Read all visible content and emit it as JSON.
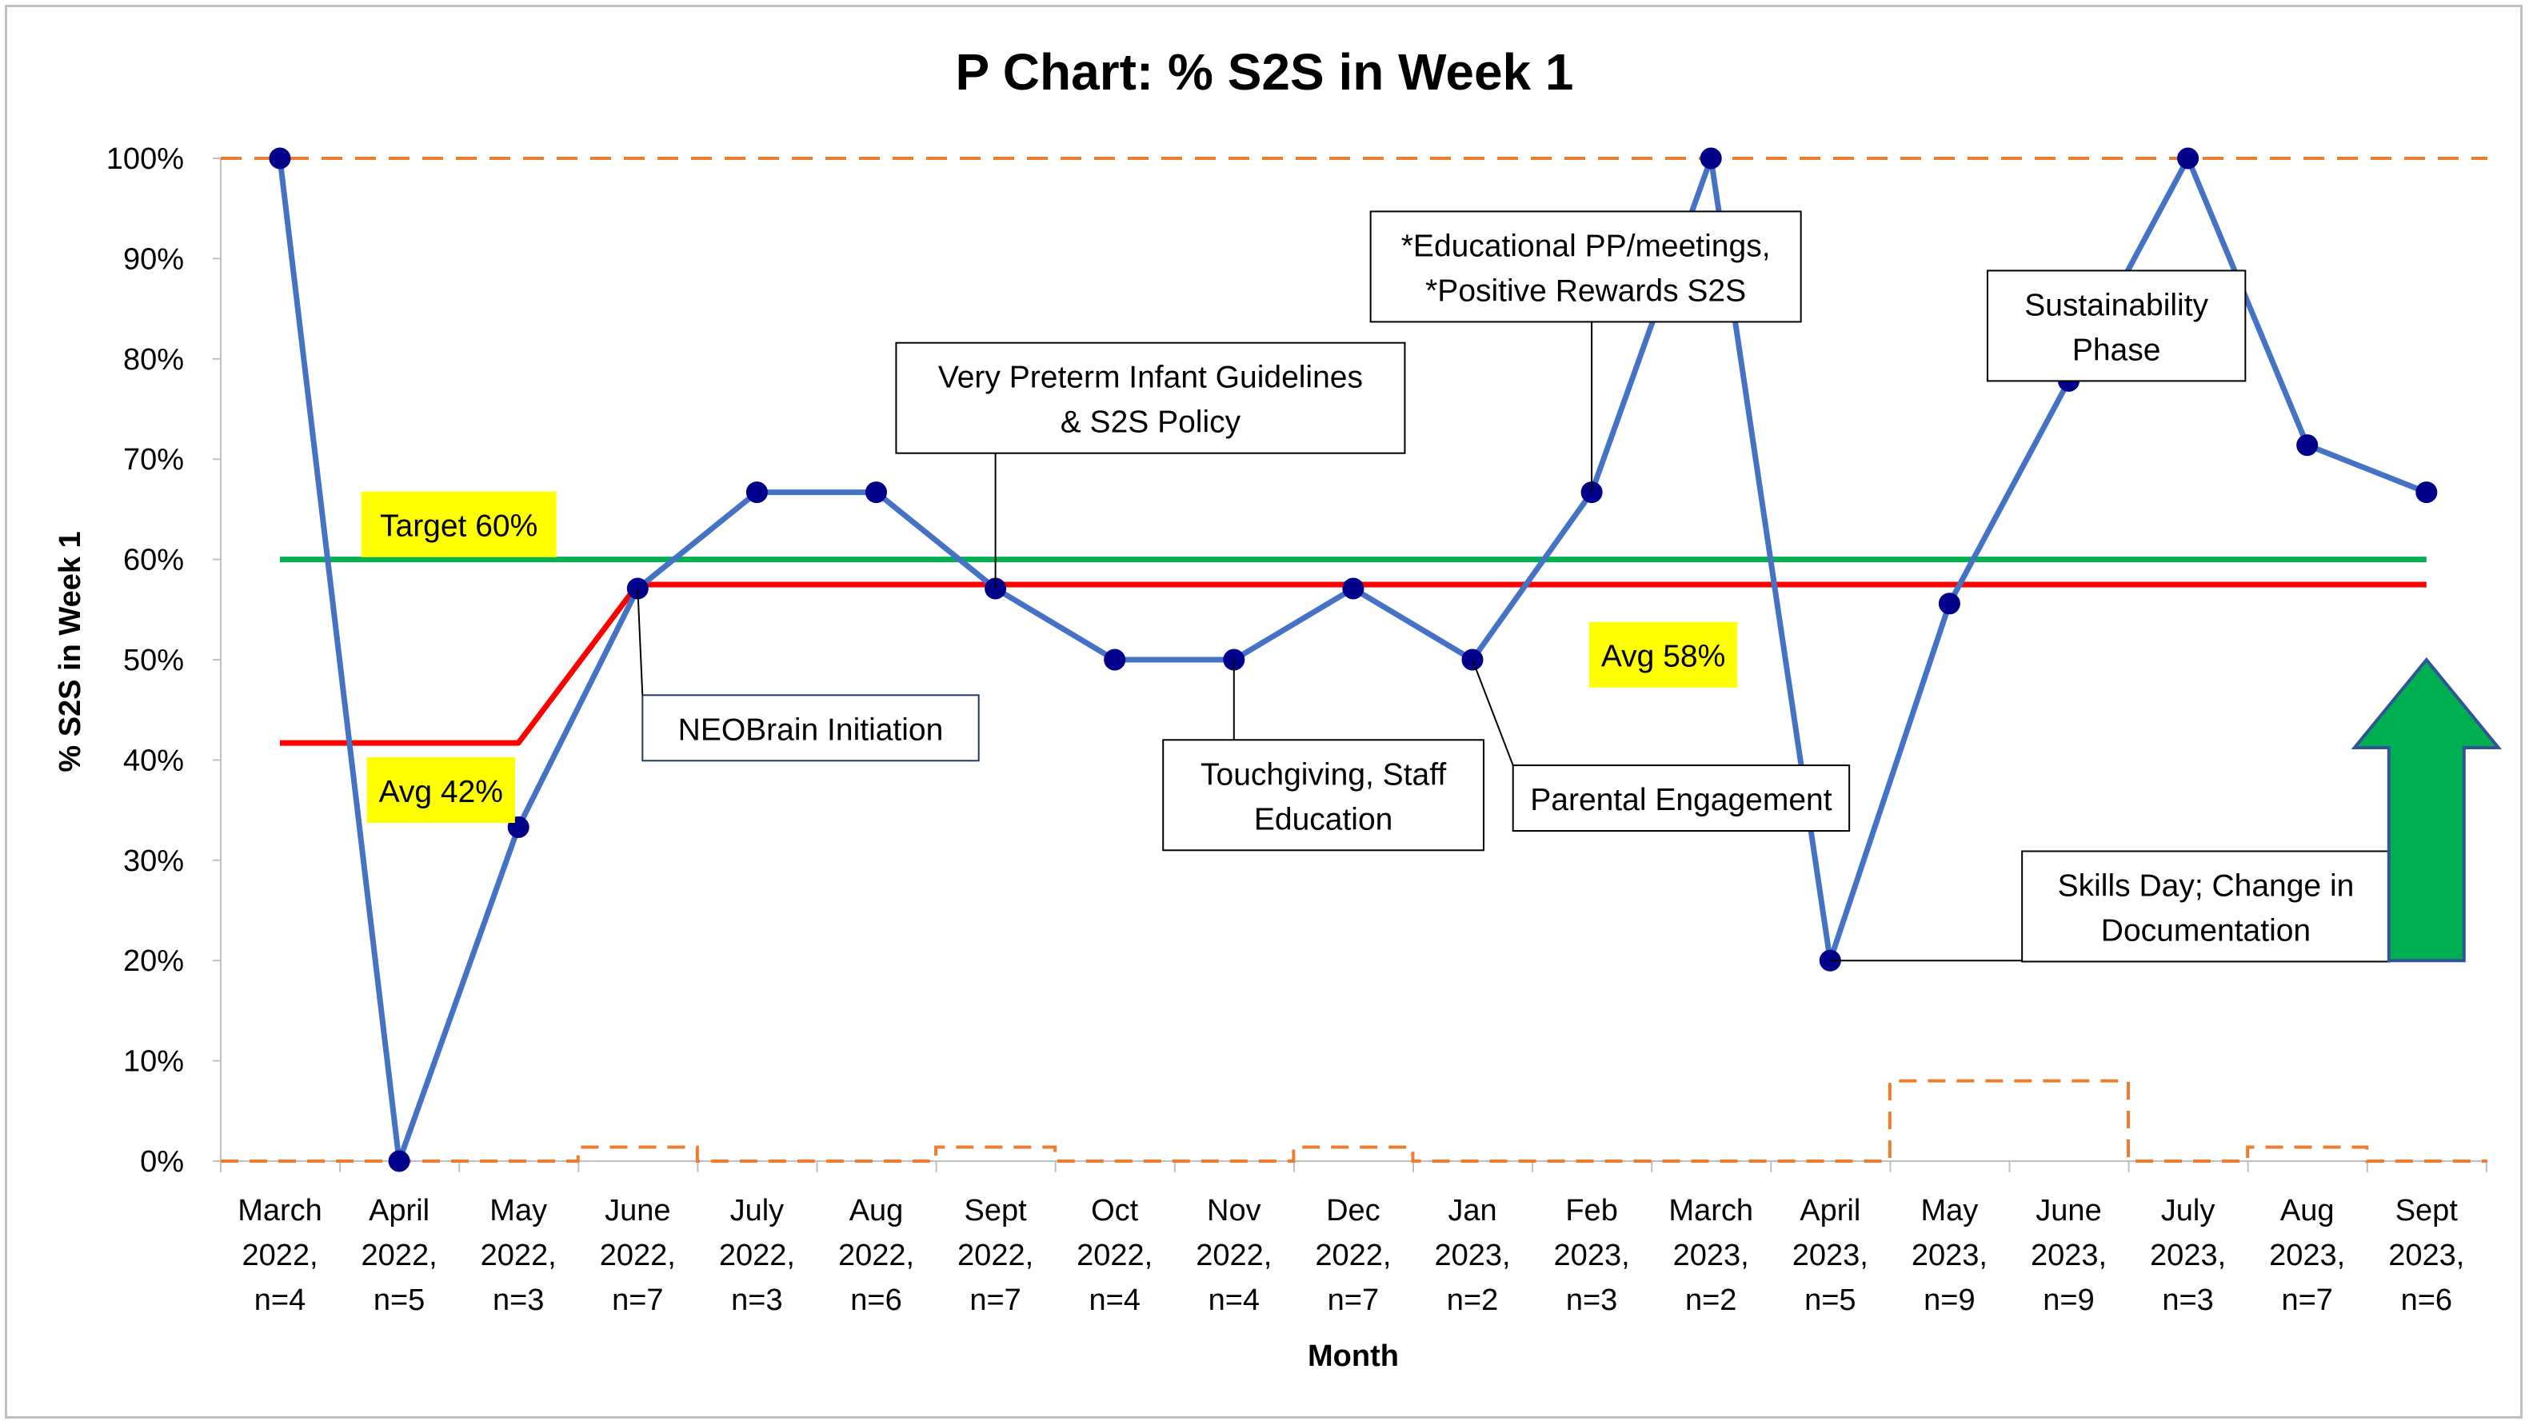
{
  "chart_data": {
    "type": "line",
    "title": "P Chart: % S2S in Week 1",
    "xlabel": "Month",
    "ylabel": "% S2S in Week 1",
    "ylim": [
      0,
      100
    ],
    "y_ticks": [
      "0%",
      "10%",
      "20%",
      "30%",
      "40%",
      "50%",
      "60%",
      "70%",
      "80%",
      "90%",
      "100%"
    ],
    "categories": [
      [
        "March",
        "2022,",
        "n=4"
      ],
      [
        "April",
        "2022,",
        "n=5"
      ],
      [
        "May",
        "2022,",
        "n=3"
      ],
      [
        "June",
        "2022,",
        "n=7"
      ],
      [
        "July",
        "2022,",
        "n=3"
      ],
      [
        "Aug",
        "2022,",
        "n=6"
      ],
      [
        "Sept",
        "2022,",
        "n=7"
      ],
      [
        "Oct",
        "2022,",
        "n=4"
      ],
      [
        "Nov",
        "2022,",
        "n=4"
      ],
      [
        "Dec",
        "2022,",
        "n=7"
      ],
      [
        "Jan",
        "2023,",
        "n=2"
      ],
      [
        "Feb",
        "2023,",
        "n=3"
      ],
      [
        "March",
        "2023,",
        "n=2"
      ],
      [
        "April",
        "2023,",
        "n=5"
      ],
      [
        "May",
        "2023,",
        "n=9"
      ],
      [
        "June",
        "2023,",
        "n=9"
      ],
      [
        "July",
        "2023,",
        "n=3"
      ],
      [
        "Aug",
        "2023,",
        "n=7"
      ],
      [
        "Sept",
        "2023,",
        "n=6"
      ]
    ],
    "series": [
      {
        "values": [
          100,
          0,
          33.3,
          57.1,
          66.7,
          66.7,
          57.1,
          50,
          50,
          57.1,
          50,
          66.7,
          100,
          20,
          55.6,
          77.8,
          100,
          71.4,
          66.7
        ],
        "color": "#4472C4",
        "marker_color": "#00008B"
      },
      {
        "values": [
          41.7,
          41.7,
          41.7,
          57.5,
          57.5,
          57.5,
          57.5,
          57.5,
          57.5,
          57.5,
          57.5,
          57.5,
          57.5,
          57.5,
          57.5,
          57.5,
          57.5,
          57.5,
          57.5
        ],
        "color": "#FF0000"
      },
      {
        "values": [
          60,
          60,
          60,
          60,
          60,
          60,
          60,
          60,
          60,
          60,
          60,
          60,
          60,
          60,
          60,
          60,
          60,
          60,
          60
        ],
        "color": "#00B050"
      },
      {
        "values": [
          100,
          100,
          100,
          100,
          100,
          100,
          100,
          100,
          100,
          100,
          100,
          100,
          100,
          100,
          100,
          100,
          100,
          100,
          100
        ],
        "color": "#ED7D31",
        "style": "dashed"
      },
      {
        "values": [
          0,
          0,
          0,
          1.4,
          0,
          0,
          1.4,
          0,
          0,
          1.4,
          0,
          0,
          0,
          0,
          8,
          8,
          0,
          1.4,
          0
        ],
        "color": "#ED7D31",
        "style": "dashed-step"
      }
    ],
    "annotations": [
      {
        "lines": [
          "Target 60%"
        ],
        "style": "highlight",
        "x": 1.5,
        "y": 63.5
      },
      {
        "lines": [
          "Avg 42%"
        ],
        "style": "highlight",
        "x": 1.35,
        "y": 37
      },
      {
        "lines": [
          "Avg 58%"
        ],
        "style": "highlight",
        "x": 11.6,
        "y": 50.5
      },
      {
        "lines": [
          "NEOBrain Initiation"
        ],
        "style": "box-blue",
        "x": 4.45,
        "y": 43.2,
        "point_index": 3
      },
      {
        "lines": [
          "Very Preterm Infant Guidelines",
          "& S2S Policy"
        ],
        "style": "box",
        "x": 7.3,
        "y": 76.1,
        "point_index": 6
      },
      {
        "lines": [
          "Touchgiving, Staff",
          "Education"
        ],
        "style": "box",
        "x": 8.75,
        "y": 36.5,
        "point_index": 8
      },
      {
        "lines": [
          "Parental Engagement"
        ],
        "style": "box",
        "x": 11.75,
        "y": 36.2,
        "point_index": 10
      },
      {
        "lines": [
          "*Educational PP/meetings,",
          "*Positive Rewards S2S"
        ],
        "style": "box",
        "x": 10.95,
        "y": 89.2,
        "point_index": 11
      },
      {
        "lines": [
          "Sustainability",
          "Phase"
        ],
        "style": "box",
        "x": 15.4,
        "y": 83.3,
        "point_index": 15
      },
      {
        "lines": [
          "Skills Day; Change in",
          "Documentation"
        ],
        "style": "box",
        "x": 16.15,
        "y": 25.4,
        "point_index": 13
      }
    ],
    "arrow": {
      "direction": "up",
      "color": "#00B050",
      "x": 18.0,
      "y_from": 20,
      "y_to": 50
    },
    "grid": false,
    "legend": "none"
  }
}
